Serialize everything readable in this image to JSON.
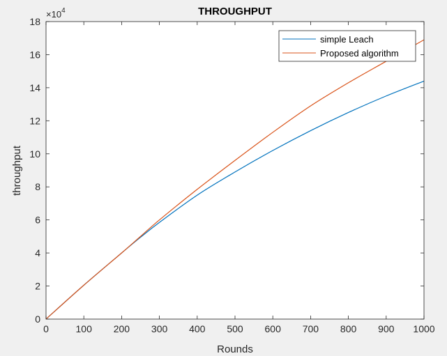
{
  "chart_data": {
    "type": "line",
    "title": "THROUGHPUT",
    "xlabel": "Rounds",
    "ylabel": "throughput",
    "y_exponent_label": "×10",
    "y_exponent_power": "4",
    "xlim": [
      0,
      1000
    ],
    "ylim": [
      0,
      18
    ],
    "xticks": [
      0,
      100,
      200,
      300,
      400,
      500,
      600,
      700,
      800,
      900,
      1000
    ],
    "yticks": [
      0,
      2,
      4,
      6,
      8,
      10,
      12,
      14,
      16,
      18
    ],
    "legend_position": "top-right",
    "series": [
      {
        "name": "simple Leach",
        "color": "#0072BD",
        "x": [
          0,
          100,
          200,
          250,
          300,
          400,
          500,
          600,
          700,
          800,
          900,
          1000
        ],
        "y": [
          0,
          2.05,
          4.0,
          4.95,
          5.85,
          7.5,
          8.9,
          10.2,
          11.4,
          12.5,
          13.5,
          14.4
        ]
      },
      {
        "name": "Proposed algorithm",
        "color": "#D95319",
        "x": [
          0,
          100,
          200,
          250,
          300,
          400,
          500,
          600,
          700,
          800,
          900,
          1000
        ],
        "y": [
          0,
          2.05,
          4.0,
          5.0,
          6.0,
          7.85,
          9.6,
          11.3,
          12.9,
          14.3,
          15.6,
          16.9
        ]
      }
    ]
  }
}
